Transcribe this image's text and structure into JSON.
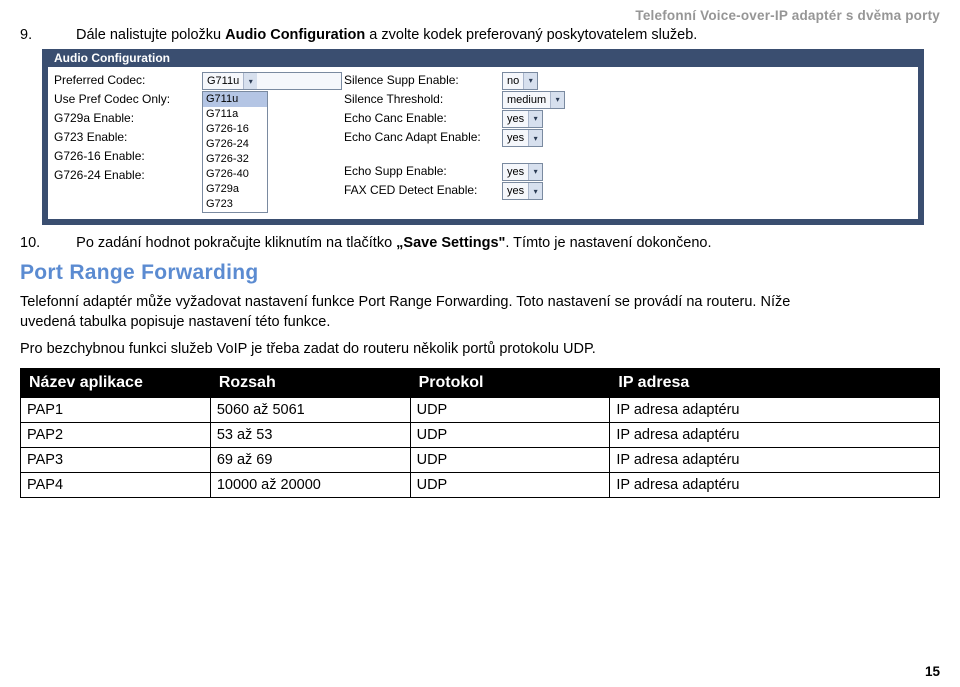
{
  "header_right": "Telefonní Voice-over-IP adaptér s dvěma porty",
  "step9": {
    "num": "9.",
    "text_before": "Dále nalistujte položku ",
    "bold1": "Audio Configuration",
    "text_after": " a zvolte kodek preferovaný poskytovatelem služeb."
  },
  "audio_panel": {
    "title": "Audio Configuration",
    "col1_labels": [
      "Preferred Codec:",
      "Use Pref Codec Only:",
      "G729a Enable:",
      "G723 Enable:",
      "G726-16 Enable:",
      "G726-24 Enable:"
    ],
    "preferred_value": "G711u",
    "listbox_items": [
      "G711u",
      "G711a",
      "G726-16",
      "G726-24",
      "G726-32",
      "G726-40",
      "G729a",
      "G723"
    ],
    "listbox_selected_index": 0,
    "col3_labels": [
      "Silence Supp Enable:",
      "Silence Threshold:",
      "Echo Canc Enable:",
      "Echo Canc Adapt Enable:",
      "Echo Supp Enable:",
      "FAX CED Detect Enable:"
    ],
    "col4_values": [
      "no",
      "medium",
      "yes",
      "yes",
      "yes",
      "yes"
    ]
  },
  "step10": {
    "num": "10.",
    "text_before": "Po zadání hodnot pokračujte kliknutím na tlačítko ",
    "bold1": "„Save Settings\"",
    "text_after": ". Tímto je nastavení dokončeno."
  },
  "section_heading": "Port Range Forwarding",
  "para1": "Telefonní adaptér může vyžadovat nastavení funkce Port Range Forwarding. Toto nastavení se provádí na routeru. Níže uvedená tabulka popisuje nastavení této funkce.",
  "para2": "Pro bezchybnou funkci služeb VoIP je třeba zadat do routeru několik portů protokolu UDP.",
  "table": {
    "headers": [
      "Název aplikace",
      "Rozsah",
      "Protokol",
      "IP adresa"
    ],
    "rows": [
      [
        "PAP1",
        "5060 až 5061",
        "UDP",
        "IP adresa adaptéru"
      ],
      [
        "PAP2",
        "53 až 53",
        "UDP",
        "IP adresa adaptéru"
      ],
      [
        "PAP3",
        "69 až 69",
        "UDP",
        "IP adresa adaptéru"
      ],
      [
        "PAP4",
        "10000 až 20000",
        "UDP",
        "IP adresa adaptéru"
      ]
    ],
    "col_widths": [
      "190px",
      "200px",
      "200px",
      "330px"
    ]
  },
  "page_number": "15",
  "colors": {
    "panel_border": "#3a4e70",
    "heading_blue": "#5b8bd1",
    "header_gray": "#969696"
  }
}
